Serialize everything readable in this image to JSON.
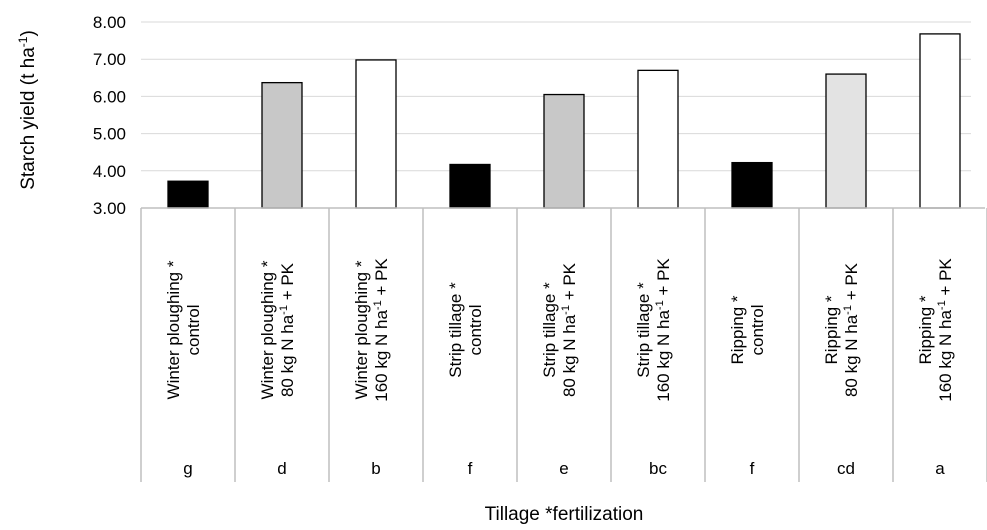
{
  "chart_data": {
    "type": "bar",
    "ylabel": {
      "text": "Starch yield (t ha",
      "sup": "-1",
      "close": ")"
    },
    "xlabel": "Tillage *fertilization",
    "ylim": [
      3.0,
      8.0
    ],
    "yticks": [
      "3.00",
      "4.00",
      "5.00",
      "6.00",
      "7.00",
      "8.00"
    ],
    "grid": true,
    "categories": [
      {
        "line1": "Winter ploughing *",
        "line2": "control",
        "line2_sup": "",
        "line2_after": ""
      },
      {
        "line1": "Winter ploughing *",
        "line2": "80 kg N ha",
        "line2_sup": "-1",
        "line2_after": " + PK"
      },
      {
        "line1": "Winter ploughing *",
        "line2": "160 kg N ha",
        "line2_sup": "-1",
        "line2_after": " + PK"
      },
      {
        "line1": "Strip tillage *",
        "line2": "control",
        "line2_sup": "",
        "line2_after": ""
      },
      {
        "line1": "Strip tillage *",
        "line2": "80 kg N ha",
        "line2_sup": "-1",
        "line2_after": " + PK"
      },
      {
        "line1": "Strip tillage *",
        "line2": "160 kg N ha",
        "line2_sup": "-1",
        "line2_after": " + PK"
      },
      {
        "line1": "Ripping *",
        "line2": "control",
        "line2_sup": "",
        "line2_after": ""
      },
      {
        "line1": "Ripping *",
        "line2": "80 kg N ha",
        "line2_sup": "-1",
        "line2_after": " + PK"
      },
      {
        "line1": "Ripping *",
        "line2": "160 kg N ha",
        "line2_sup": "-1",
        "line2_after": " + PK"
      }
    ],
    "values": [
      3.72,
      6.37,
      6.98,
      4.17,
      6.05,
      6.7,
      4.22,
      6.6,
      7.68
    ],
    "significance": [
      "g",
      "d",
      "b",
      "f",
      "e",
      "bc",
      "f",
      "cd",
      "a"
    ],
    "colors": [
      "#000000",
      "#c8c8c8",
      "#ffffff",
      "#000000",
      "#c8c8c8",
      "#ffffff",
      "#000000",
      "#e3e3e3",
      "#ffffff"
    ]
  }
}
